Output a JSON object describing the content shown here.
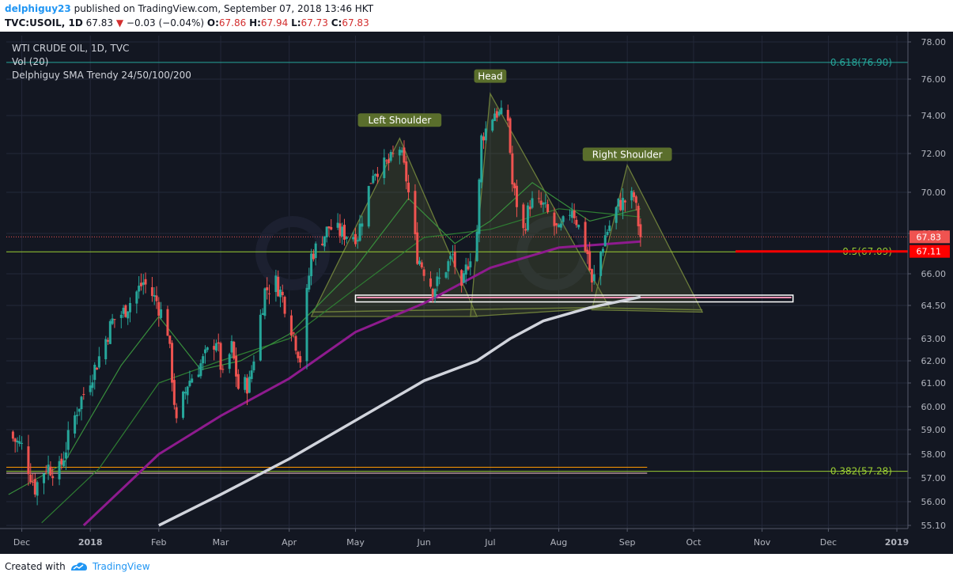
{
  "header": {
    "author": "delphiguy23",
    "published": "published on TradingView.com, September 07, 2018 13:46 HKT",
    "symbol": "TVC:USOIL, 1D",
    "last": "67.83",
    "change": "−0.03 (−0.04%)",
    "ohlc": [
      {
        "k": "O:",
        "v": "67.86"
      },
      {
        "k": "H:",
        "v": "67.94"
      },
      {
        "k": "L:",
        "v": "67.73"
      },
      {
        "k": "C:",
        "v": "67.83"
      }
    ]
  },
  "legend": [
    "WTI CRUDE OIL, 1D, TVC",
    "Vol (20)",
    "Delphiguy SMA Trendy 24/50/100/200"
  ],
  "footer": {
    "made": "Created with",
    "brand": "TradingView"
  },
  "colors": {
    "background": "#131722",
    "up": "#26a69a",
    "down": "#ef5350",
    "sma_purple": "#8e1b8e",
    "sma_white": "#d1d4dc",
    "sma_green": "#2e7d32",
    "fib": "#9acd32",
    "pattern": "#6b7c3a"
  },
  "chart_data": {
    "type": "candlestick",
    "title": "WTI CRUDE OIL, 1D, TVC",
    "y_ticks": [
      55.1,
      56.0,
      57.0,
      58.0,
      59.0,
      60.0,
      61.0,
      62.0,
      63.0,
      64.5,
      66.0,
      68.0,
      70.0,
      72.0,
      74.0,
      76.0,
      78.0
    ],
    "y_tick_labels": [
      "55.10",
      "56.00",
      "57.00",
      "58.00",
      "59.00",
      "60.00",
      "61.00",
      "62.00",
      "63.00",
      "64.50",
      "66.00",
      "68.00",
      "70.00",
      "72.00",
      "74.00",
      "76.00",
      "78.00"
    ],
    "x_labels": [
      {
        "date": "2017-12-01",
        "label": "Dec",
        "bold": false
      },
      {
        "date": "2018-01-01",
        "label": "2018",
        "bold": true
      },
      {
        "date": "2018-02-01",
        "label": "Feb",
        "bold": false
      },
      {
        "date": "2018-03-01",
        "label": "Mar",
        "bold": false
      },
      {
        "date": "2018-04-01",
        "label": "Apr",
        "bold": false
      },
      {
        "date": "2018-05-01",
        "label": "May",
        "bold": false
      },
      {
        "date": "2018-06-01",
        "label": "Jun",
        "bold": false
      },
      {
        "date": "2018-07-01",
        "label": "Jul",
        "bold": false
      },
      {
        "date": "2018-08-01",
        "label": "Aug",
        "bold": false
      },
      {
        "date": "2018-09-01",
        "label": "Sep",
        "bold": false
      },
      {
        "date": "2018-10-01",
        "label": "Oct",
        "bold": false
      },
      {
        "date": "2018-11-01",
        "label": "Nov",
        "bold": false
      },
      {
        "date": "2018-12-01",
        "label": "Dec",
        "bold": false
      },
      {
        "date": "2019-01-01",
        "label": "2019",
        "bold": true
      }
    ],
    "x_range": [
      "2017-11-24",
      "2019-01-06"
    ],
    "price_path": [
      [
        "2017-11-24",
        58.9
      ],
      [
        "2017-12-01",
        58.3
      ],
      [
        "2017-12-07",
        56.6
      ],
      [
        "2017-12-12",
        57.5
      ],
      [
        "2017-12-18",
        57.3
      ],
      [
        "2017-12-26",
        59.9
      ],
      [
        "2018-01-04",
        61.9
      ],
      [
        "2018-01-11",
        63.8
      ],
      [
        "2018-01-16",
        64.2
      ],
      [
        "2018-01-25",
        65.6
      ],
      [
        "2018-01-31",
        64.7
      ],
      [
        "2018-02-05",
        63.4
      ],
      [
        "2018-02-09",
        59.2
      ],
      [
        "2018-02-14",
        61.0
      ],
      [
        "2018-02-21",
        62.0
      ],
      [
        "2018-02-27",
        63.0
      ],
      [
        "2018-03-02",
        61.2
      ],
      [
        "2018-03-06",
        62.6
      ],
      [
        "2018-03-09",
        60.8
      ],
      [
        "2018-03-14",
        61.0
      ],
      [
        "2018-03-21",
        65.2
      ],
      [
        "2018-03-26",
        65.6
      ],
      [
        "2018-03-29",
        64.9
      ],
      [
        "2018-04-03",
        63.2
      ],
      [
        "2018-04-06",
        62.1
      ],
      [
        "2018-04-11",
        66.9
      ],
      [
        "2018-04-19",
        68.3
      ],
      [
        "2018-04-25",
        68.0
      ],
      [
        "2018-05-02",
        67.9
      ],
      [
        "2018-05-09",
        71.1
      ],
      [
        "2018-05-16",
        71.5
      ],
      [
        "2018-05-21",
        72.3
      ],
      [
        "2018-05-24",
        70.7
      ],
      [
        "2018-05-29",
        66.9
      ],
      [
        "2018-06-05",
        65.3
      ],
      [
        "2018-06-08",
        65.7
      ],
      [
        "2018-06-14",
        66.9
      ],
      [
        "2018-06-18",
        65.0
      ],
      [
        "2018-06-20",
        66.2
      ],
      [
        "2018-06-25",
        68.1
      ],
      [
        "2018-06-27",
        72.8
      ],
      [
        "2018-07-03",
        74.2
      ],
      [
        "2018-07-09",
        73.8
      ],
      [
        "2018-07-11",
        70.4
      ],
      [
        "2018-07-16",
        68.1
      ],
      [
        "2018-07-19",
        69.5
      ],
      [
        "2018-07-25",
        69.3
      ],
      [
        "2018-08-01",
        68.0
      ],
      [
        "2018-08-07",
        69.3
      ],
      [
        "2018-08-14",
        67.0
      ],
      [
        "2018-08-16",
        65.4
      ],
      [
        "2018-08-22",
        67.9
      ],
      [
        "2018-08-28",
        69.4
      ],
      [
        "2018-09-04",
        69.8
      ],
      [
        "2018-09-07",
        67.83
      ]
    ],
    "sma_lines": [
      {
        "name": "SMA 200",
        "color": "#d1d4dc",
        "width": 3.5,
        "points": [
          [
            "2018-02-01",
            55.1
          ],
          [
            "2018-03-01",
            56.3
          ],
          [
            "2018-04-01",
            57.8
          ],
          [
            "2018-05-01",
            59.4
          ],
          [
            "2018-06-01",
            61.1
          ],
          [
            "2018-06-25",
            62.0
          ],
          [
            "2018-07-10",
            63.0
          ],
          [
            "2018-07-25",
            63.8
          ],
          [
            "2018-08-15",
            64.4
          ],
          [
            "2018-09-07",
            64.9
          ]
        ]
      },
      {
        "name": "SMA 100",
        "color": "#8e1b8e",
        "width": 3,
        "points": [
          [
            "2017-12-29",
            55.1
          ],
          [
            "2018-02-01",
            58.0
          ],
          [
            "2018-03-01",
            59.6
          ],
          [
            "2018-04-01",
            61.2
          ],
          [
            "2018-05-01",
            63.3
          ],
          [
            "2018-06-01",
            64.6
          ],
          [
            "2018-07-01",
            66.3
          ],
          [
            "2018-08-01",
            67.3
          ],
          [
            "2018-09-07",
            67.6
          ]
        ]
      },
      {
        "name": "SMA 50",
        "color": "#2e7d32",
        "width": 1.2,
        "points": [
          [
            "2017-12-10",
            55.2
          ],
          [
            "2018-01-05",
            57.4
          ],
          [
            "2018-02-01",
            61.0
          ],
          [
            "2018-03-01",
            62.0
          ],
          [
            "2018-04-01",
            63.0
          ],
          [
            "2018-05-01",
            65.3
          ],
          [
            "2018-06-01",
            67.8
          ],
          [
            "2018-07-01",
            68.2
          ],
          [
            "2018-08-01",
            69.2
          ],
          [
            "2018-09-07",
            68.8
          ]
        ]
      },
      {
        "name": "SMA 24",
        "color": "#388e3c",
        "width": 1.2,
        "points": [
          [
            "2017-11-25",
            56.3
          ],
          [
            "2017-12-20",
            57.6
          ],
          [
            "2018-01-15",
            61.8
          ],
          [
            "2018-02-01",
            64.0
          ],
          [
            "2018-02-20",
            61.6
          ],
          [
            "2018-03-10",
            62.0
          ],
          [
            "2018-04-01",
            63.2
          ],
          [
            "2018-05-01",
            66.3
          ],
          [
            "2018-05-25",
            69.7
          ],
          [
            "2018-06-15",
            67.5
          ],
          [
            "2018-07-01",
            68.6
          ],
          [
            "2018-07-20",
            70.5
          ],
          [
            "2018-08-15",
            68.6
          ],
          [
            "2018-09-07",
            69.2
          ]
        ]
      }
    ],
    "fib_levels": [
      {
        "label": "0.618(76.90)",
        "value": 76.9,
        "color": "#26a69a"
      },
      {
        "label": "0.5(67.09)",
        "value": 67.09,
        "color": "#9acd32"
      },
      {
        "label": "0.382(57.28)",
        "value": 57.28,
        "color": "#9acd32"
      }
    ],
    "last_price": {
      "value": 67.83,
      "label": "67.83"
    },
    "marker_price": {
      "value": 67.11,
      "label": "67.11"
    },
    "annotations": [
      {
        "text": "Left Shoulder",
        "date": "2018-05-21",
        "price": 73.7
      },
      {
        "text": "Head",
        "date": "2018-07-01",
        "price": 76.1
      },
      {
        "text": "Right Shoulder",
        "date": "2018-09-01",
        "price": 71.9
      }
    ],
    "pattern_triangles": [
      [
        [
          "2018-04-11",
          64.0
        ],
        [
          "2018-05-21",
          72.8
        ],
        [
          "2018-06-25",
          64.0
        ]
      ],
      [
        [
          "2018-06-22",
          64.0
        ],
        [
          "2018-07-01",
          75.2
        ],
        [
          "2018-08-24",
          64.4
        ]
      ],
      [
        [
          "2018-08-16",
          64.3
        ],
        [
          "2018-09-01",
          71.4
        ],
        [
          "2018-10-05",
          64.2
        ]
      ]
    ],
    "pattern_base": [
      [
        "2018-04-11",
        64.2
      ],
      [
        "2018-06-12",
        64.3
      ],
      [
        "2018-08-16",
        64.4
      ],
      [
        "2018-10-05",
        64.3
      ]
    ],
    "support_zone": {
      "from": "2018-05-01",
      "to": "2018-11-15",
      "low": 64.78,
      "high": 64.95
    },
    "orange_lines": [
      {
        "value": 57.45,
        "from": "2017-11-24",
        "to": "2018-09-10",
        "color": "#ff9800"
      },
      {
        "value": 57.2,
        "from": "2017-11-24",
        "to": "2018-09-10",
        "color": "#ffcdd2"
      }
    ],
    "red_marker_line": {
      "value": 67.11,
      "from": "2018-10-20",
      "to": "2018-11-29",
      "color": "#ff0000"
    },
    "dotted_price_line": {
      "value": 67.83,
      "color": "#ef5350"
    }
  }
}
